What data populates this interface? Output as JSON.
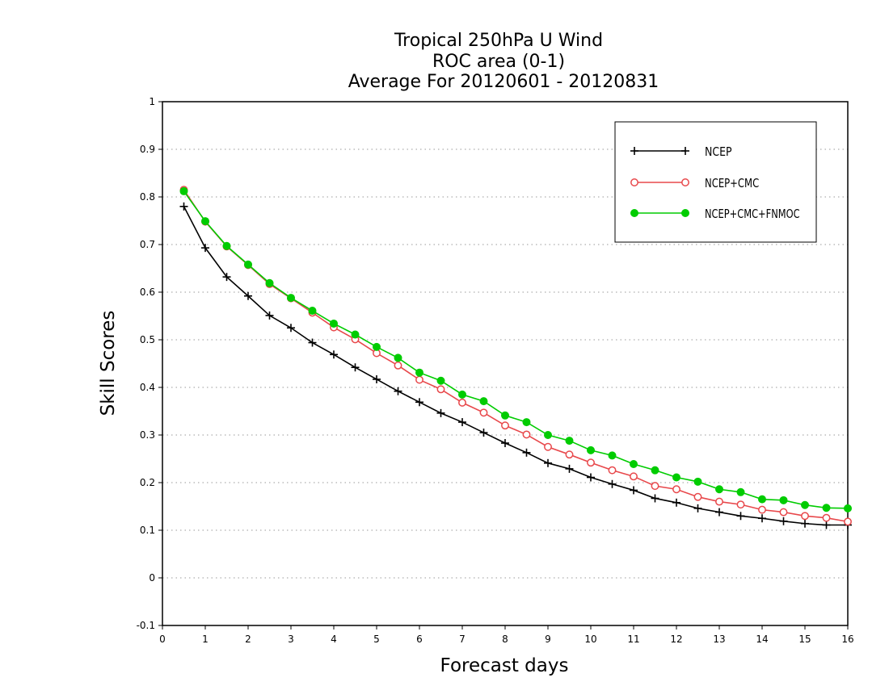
{
  "chart_data": {
    "type": "line",
    "title_lines": [
      "Tropical 250hPa U Wind",
      "ROC area (0-1)",
      "Average For 20120601 - 20120831"
    ],
    "xlabel": "Forecast days",
    "ylabel": "Skill Scores",
    "xlim": [
      0,
      16
    ],
    "ylim": [
      -0.1,
      1
    ],
    "xticks": [
      0,
      1,
      2,
      3,
      4,
      5,
      6,
      7,
      8,
      9,
      10,
      11,
      12,
      13,
      14,
      15,
      16
    ],
    "yticks": [
      -0.1,
      0,
      0.1,
      0.2,
      0.3,
      0.4,
      0.5,
      0.6,
      0.7,
      0.8,
      0.9,
      1
    ],
    "ytick_labels": [
      "-0.1",
      "0",
      "0.1",
      "0.2",
      "0.3",
      "0.4",
      "0.5",
      "0.6",
      "0.7",
      "0.8",
      "0.9",
      "1"
    ],
    "grid": "dotted horizontal",
    "legend_position": "top-right",
    "x": [
      0.5,
      1,
      1.5,
      2,
      2.5,
      3,
      3.5,
      4,
      4.5,
      5,
      5.5,
      6,
      6.5,
      7,
      7.5,
      8,
      8.5,
      9,
      9.5,
      10,
      10.5,
      11,
      11.5,
      12,
      12.5,
      13,
      13.5,
      14,
      14.5,
      15,
      15.5,
      16
    ],
    "series": [
      {
        "name": "NCEP",
        "color": "#000000",
        "marker": "plus",
        "values": [
          0.78,
          0.693,
          0.632,
          0.592,
          0.551,
          0.525,
          0.494,
          0.469,
          0.442,
          0.417,
          0.392,
          0.369,
          0.346,
          0.327,
          0.305,
          0.283,
          0.263,
          0.241,
          0.229,
          0.211,
          0.197,
          0.184,
          0.167,
          0.158,
          0.146,
          0.138,
          0.13,
          0.125,
          0.119,
          0.114,
          0.111,
          0.111
        ]
      },
      {
        "name": "NCEP+CMC",
        "color": "#e8484b",
        "marker": "open-circle",
        "values": [
          0.815,
          0.748,
          0.696,
          0.657,
          0.617,
          0.587,
          0.557,
          0.526,
          0.501,
          0.472,
          0.446,
          0.416,
          0.396,
          0.368,
          0.347,
          0.32,
          0.301,
          0.275,
          0.259,
          0.242,
          0.226,
          0.213,
          0.193,
          0.186,
          0.17,
          0.16,
          0.154,
          0.143,
          0.138,
          0.13,
          0.126,
          0.118
        ]
      },
      {
        "name": "NCEP+CMC+FNMOC",
        "color": "#00cc00",
        "marker": "filled-circle",
        "values": [
          0.812,
          0.749,
          0.697,
          0.658,
          0.619,
          0.588,
          0.561,
          0.534,
          0.511,
          0.485,
          0.462,
          0.431,
          0.414,
          0.385,
          0.371,
          0.341,
          0.327,
          0.3,
          0.288,
          0.268,
          0.257,
          0.239,
          0.226,
          0.211,
          0.202,
          0.186,
          0.18,
          0.165,
          0.163,
          0.153,
          0.147,
          0.146
        ]
      }
    ]
  }
}
